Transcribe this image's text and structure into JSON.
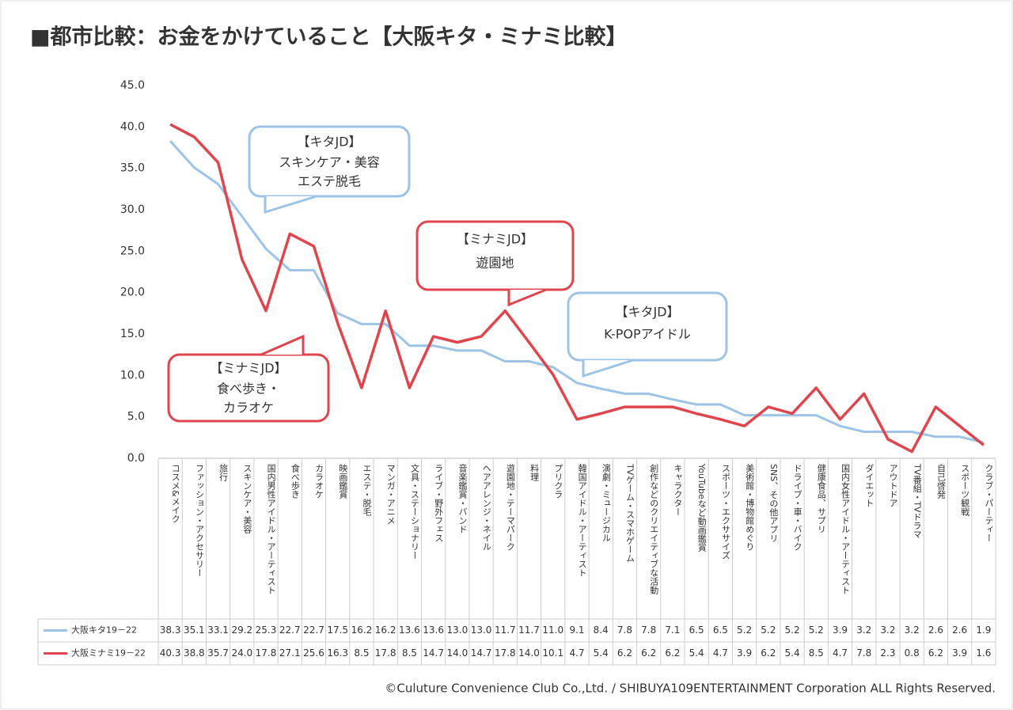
{
  "chart_data": {
    "type": "line",
    "title": "■都市比較：お金をかけていること【大阪キタ・ミナミ比較】",
    "categories": [
      "コスメ&メイク",
      "ファッション・アクセサリー",
      "旅行",
      "スキンケア・美容",
      "国内男性アイドル・アーティスト",
      "食べ歩き",
      "カラオケ",
      "映画鑑賞",
      "エステ・脱毛",
      "マンガ・アニメ",
      "文具・ステーショナリー",
      "ライブ・野外フェス",
      "音楽鑑賞・バンド",
      "ヘアアレンジ・ネイル",
      "遊園地・テーマパーク",
      "料理",
      "プリクラ",
      "韓国アイドル・アーティスト",
      "演劇・ミュージカル",
      "TVゲーム・スマホゲーム",
      "創作などのクリエイティブな活動",
      "キャラクター",
      "YouTubeなど動画鑑賞",
      "スポーツ・エクササイズ",
      "美術館・博物館めぐり",
      "SNS、その他アプリ",
      "ドライブ・車・バイク",
      "健康食品、サプリ",
      "国内女性アイドル・アーティスト",
      "ダイエット",
      "アウトドア",
      "TV番組・TVドラマ",
      "自己啓発",
      "スポーツ観戦",
      "クラブ・パーティー"
    ],
    "series": [
      {
        "name": "大阪キタ19－22",
        "color": "#9dc3e6",
        "values": [
          38.3,
          35.1,
          33.1,
          29.2,
          25.3,
          22.7,
          22.7,
          17.5,
          16.2,
          16.2,
          13.6,
          13.6,
          13.0,
          13.0,
          11.7,
          11.7,
          11.0,
          9.1,
          8.4,
          7.8,
          7.8,
          7.1,
          6.5,
          6.5,
          5.2,
          5.2,
          5.2,
          5.2,
          3.9,
          3.2,
          3.2,
          3.2,
          2.6,
          2.6,
          1.9
        ],
        "value_labels": [
          "38.3",
          "35.1",
          "33.1",
          "29.2",
          "25.3",
          "22.7",
          "22.7",
          "17.5",
          "16.2",
          "16.2",
          "13.6",
          "13.6",
          "13.0",
          "13.0",
          "11.7",
          "11.7",
          "11.0",
          "9.1",
          "8.4",
          "7.8",
          "7.8",
          "7.1",
          "6.5",
          "6.5",
          "5.2",
          "5.2",
          "5.2",
          "5.2",
          "3.9",
          "3.2",
          "3.2",
          "3.2",
          "2.6",
          "2.6",
          "1.9"
        ]
      },
      {
        "name": "大阪ミナミ19－22",
        "color": "#e0454e",
        "values": [
          40.3,
          38.8,
          35.7,
          24.0,
          17.8,
          27.1,
          25.6,
          16.3,
          8.5,
          17.8,
          8.5,
          14.7,
          14.0,
          14.7,
          17.8,
          14.0,
          10.1,
          4.7,
          5.4,
          6.2,
          6.2,
          6.2,
          5.4,
          4.7,
          3.9,
          6.2,
          5.4,
          8.5,
          4.7,
          7.8,
          2.3,
          0.8,
          6.2,
          3.9,
          1.6
        ],
        "value_labels": [
          "40.3",
          "38.8",
          "35.7",
          "24.0",
          "17.8",
          "27.1",
          "25.6",
          "16.3",
          "8.5",
          "17.8",
          "8.5",
          "14.7",
          "14.0",
          "14.7",
          "17.8",
          "14.0",
          "10.1",
          "4.7",
          "5.4",
          "6.2",
          "6.2",
          "6.2",
          "5.4",
          "4.7",
          "3.9",
          "6.2",
          "5.4",
          "8.5",
          "4.7",
          "7.8",
          "2.3",
          "0.8",
          "6.2",
          "3.9",
          "1.6"
        ]
      }
    ],
    "ylim": [
      0,
      45
    ],
    "yticks": [
      {
        "value": 0,
        "label": "0.0"
      },
      {
        "value": 5,
        "label": "5.0"
      },
      {
        "value": 10,
        "label": "10.0"
      },
      {
        "value": 15,
        "label": "15.0"
      },
      {
        "value": 20,
        "label": "20.0"
      },
      {
        "value": 25,
        "label": "25.0"
      },
      {
        "value": 30,
        "label": "30.0"
      },
      {
        "value": 35,
        "label": "35.0"
      },
      {
        "value": 40,
        "label": "40.0"
      },
      {
        "value": 45,
        "label": "45.0"
      }
    ],
    "grid": false,
    "annotations": [
      {
        "lines": [
          "【キタJD】",
          "スキンケア・美容",
          "エステ脱毛"
        ],
        "color": "#9dc3e6"
      },
      {
        "lines": [
          "【ミナミJD】",
          "遊園地"
        ],
        "color": "#e0454e"
      },
      {
        "lines": [
          "【キタJD】",
          "K-POPアイドル"
        ],
        "color": "#9dc3e6"
      },
      {
        "lines": [
          "【ミナミJD】",
          "食べ歩き・",
          "カラオケ"
        ],
        "color": "#e0454e"
      }
    ],
    "footer": "©Culuture Convenience Club Co.,Ltd. / SHIBUYA109ENTERTAINMENT Corporation ALL Rights Reserved."
  }
}
